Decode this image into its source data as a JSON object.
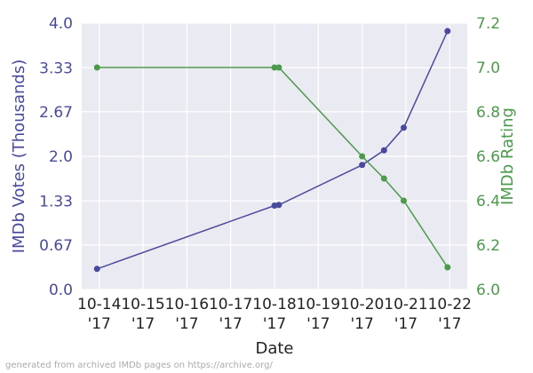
{
  "chart_data": {
    "type": "line",
    "xlabel": "Date",
    "ylabel_left": "IMDb Votes (Thousands)",
    "ylabel_right": "IMDb Rating",
    "x_ticks": [
      {
        "x": 0,
        "line1": "10-14",
        "line2": "'17"
      },
      {
        "x": 1,
        "line1": "10-15",
        "line2": "'17"
      },
      {
        "x": 2,
        "line1": "10-16",
        "line2": "'17"
      },
      {
        "x": 3,
        "line1": "10-17",
        "line2": "'17"
      },
      {
        "x": 4,
        "line1": "10-18",
        "line2": "'17"
      },
      {
        "x": 5,
        "line1": "10-19",
        "line2": "'17"
      },
      {
        "x": 6,
        "line1": "10-20",
        "line2": "'17"
      },
      {
        "x": 7,
        "line1": "10-21",
        "line2": "'17"
      },
      {
        "x": 8,
        "line1": "10-22",
        "line2": "'17"
      }
    ],
    "xlim": [
      -0.4,
      8.4
    ],
    "y_left": {
      "lim": [
        0,
        4.0
      ],
      "ticks": [
        0,
        0.67,
        1.33,
        2.0,
        2.67,
        3.33,
        4.0
      ],
      "tick_labels": [
        "0.0",
        "0.67",
        "1.33",
        "2.0",
        "2.67",
        "3.33",
        "4.0"
      ]
    },
    "y_right": {
      "lim": [
        6.0,
        7.2
      ],
      "ticks": [
        6.0,
        6.2,
        6.4,
        6.6,
        6.8,
        7.0,
        7.2
      ],
      "tick_labels": [
        "6.0",
        "6.2",
        "6.4",
        "6.6",
        "6.8",
        "7.0",
        "7.2"
      ]
    },
    "grid": true,
    "series": [
      {
        "axis": "left",
        "color": "#4a4a9c",
        "points": [
          {
            "x": -0.05,
            "y": 0.31
          },
          {
            "x": 4.0,
            "y": 1.26
          },
          {
            "x": 4.1,
            "y": 1.27
          },
          {
            "x": 6.0,
            "y": 1.87
          },
          {
            "x": 6.5,
            "y": 2.09
          },
          {
            "x": 6.95,
            "y": 2.43
          },
          {
            "x": 7.95,
            "y": 3.88
          }
        ]
      },
      {
        "axis": "right",
        "color": "#4c9a4c",
        "points": [
          {
            "x": -0.05,
            "y": 7.0
          },
          {
            "x": 4.0,
            "y": 7.0
          },
          {
            "x": 4.1,
            "y": 7.0
          },
          {
            "x": 6.0,
            "y": 6.6
          },
          {
            "x": 6.5,
            "y": 6.5
          },
          {
            "x": 6.95,
            "y": 6.4
          },
          {
            "x": 7.95,
            "y": 6.1
          }
        ]
      }
    ]
  },
  "footer": "generated from archived IMDb pages on https://archive.org/"
}
